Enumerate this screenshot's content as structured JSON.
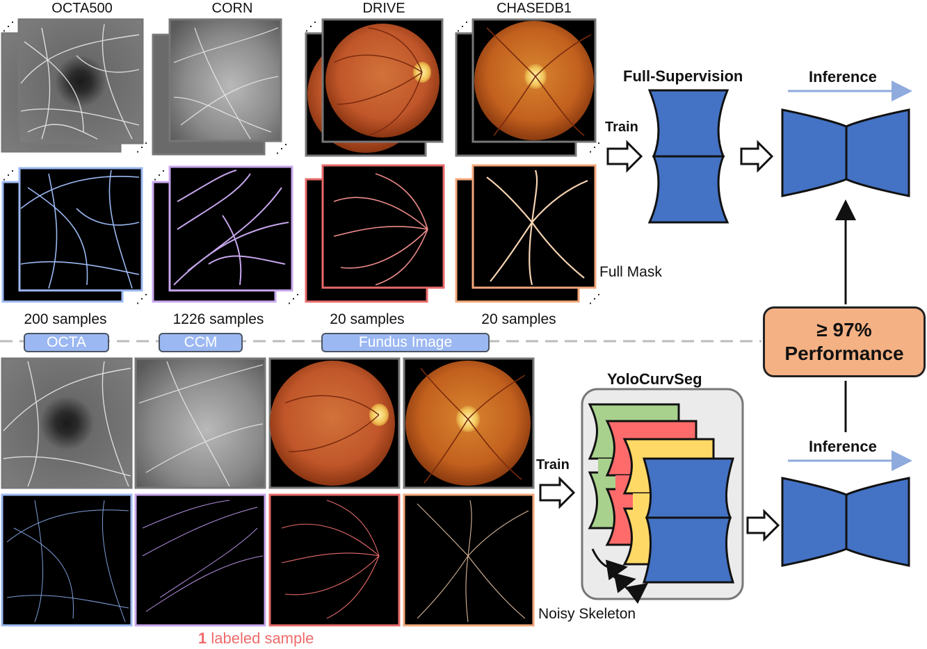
{
  "datasets": [
    {
      "name": "OCTA500",
      "samples": "200 samples",
      "color": "#9cb8f2"
    },
    {
      "name": "CORN",
      "samples": "1226 samples",
      "color": "#c7a6ec"
    },
    {
      "name": "DRIVE",
      "samples": "20 samples",
      "color": "#e86a6a"
    },
    {
      "name": "CHASEDB1",
      "samples": "20 samples",
      "color": "#f3a77a"
    }
  ],
  "categories": {
    "octa": "OCTA",
    "ccm": "CCM",
    "fundus": "Fundus Image"
  },
  "top": {
    "train_label": "Train",
    "model_title": "Full-Supervision",
    "inference_label": "Inference",
    "mask_label": "Full Mask"
  },
  "bottom": {
    "train_label": "Train",
    "model_title": "YoloCurvSeg",
    "inference_label": "Inference",
    "mask_label": "Noisy Skeleton",
    "labeled_count": "1",
    "labeled_text": "labeled sample"
  },
  "performance": {
    "line1": "≥ 97%",
    "line2": "Performance"
  },
  "colors": {
    "network_blue": "#4472c4",
    "arrow_blue": "#8faadc",
    "green": "#a9d18e",
    "red": "#ff6b6b",
    "yellow": "#ffd966",
    "perf_orange": "#f4b183",
    "labeled_red": "#ef6b6b"
  }
}
